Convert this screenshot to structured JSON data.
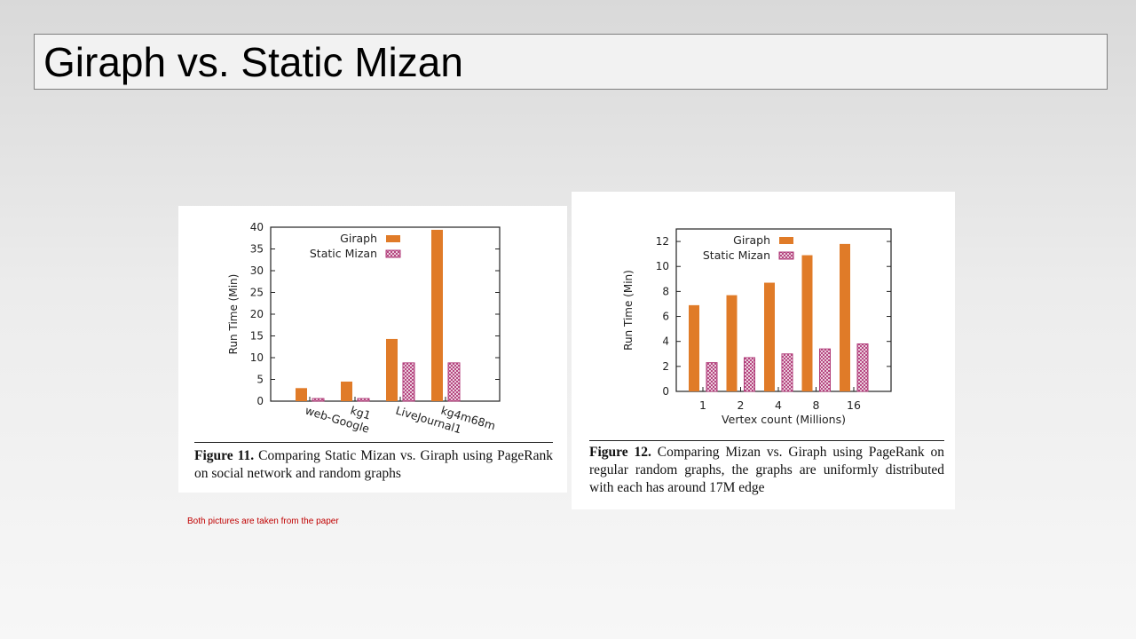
{
  "slide": {
    "title": "Giraph vs. Static Mizan",
    "footnote": "Both pictures are taken from the paper"
  },
  "colors": {
    "giraph": "#e07b28",
    "static_mizan": "#b03a78",
    "footnote": "#c00000"
  },
  "figures": [
    {
      "caption_label": "Figure 11.",
      "caption_text": "Comparing Static Mizan vs. Giraph using PageRank on social network and random graphs"
    },
    {
      "caption_label": "Figure 12.",
      "caption_text": "Comparing Mizan vs. Giraph using PageRank on regular random graphs, the graphs are uniformly distributed with each has around 17M edge"
    }
  ],
  "chart_data": [
    {
      "type": "bar",
      "categories": [
        "web-Google",
        "kg1",
        "LiveJournal1",
        "kg4m68m"
      ],
      "series": [
        {
          "name": "Giraph",
          "values": [
            3,
            4.5,
            14.3,
            39.4
          ]
        },
        {
          "name": "Static Mizan",
          "values": [
            0.6,
            0.6,
            8.8,
            8.8
          ]
        }
      ],
      "xlabel": "",
      "ylabel": "Run Time (Min)",
      "ylim": [
        0,
        40
      ],
      "yticks": [
        0,
        5,
        10,
        15,
        20,
        25,
        30,
        35,
        40
      ],
      "legend": "top-left",
      "grid": false
    },
    {
      "type": "bar",
      "categories": [
        "1",
        "2",
        "4",
        "8",
        "16"
      ],
      "series": [
        {
          "name": "Giraph",
          "values": [
            6.9,
            7.7,
            8.7,
            10.9,
            11.8
          ]
        },
        {
          "name": "Static Mizan",
          "values": [
            2.3,
            2.7,
            3.0,
            3.4,
            3.8
          ]
        }
      ],
      "xlabel": "Vertex count (Millions)",
      "ylabel": "Run Time (Min)",
      "ylim": [
        0,
        13
      ],
      "yticks": [
        0,
        2,
        4,
        6,
        8,
        10,
        12
      ],
      "legend": "top-left",
      "grid": false
    }
  ]
}
